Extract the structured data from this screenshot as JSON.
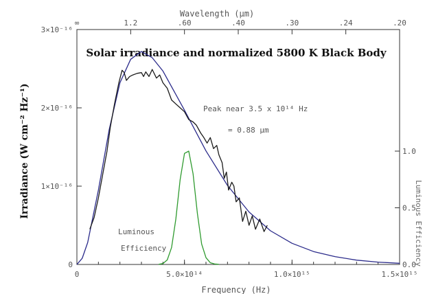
{
  "chart_data": {
    "type": "line",
    "title": "Solar irradiance and normalized 5800 K Black Body",
    "xlabel": "Frequency (Hz)",
    "ylabel": "Irradiance (W cm⁻² Hz⁻¹)",
    "x2label": "Wavelength (μm)",
    "y2label": "Luminous Efficiency",
    "xlim": [
      0,
      1500000000000000.0
    ],
    "ylim": [
      0,
      3e-16
    ],
    "y2lim": [
      0,
      1.5
    ],
    "x_ticks": [
      {
        "value": 0,
        "label": "0"
      },
      {
        "value": 500000000000000.0,
        "label": "5.0×10¹⁴"
      },
      {
        "value": 1000000000000000.0,
        "label": "1.0×10¹⁵"
      },
      {
        "value": 1500000000000000.0,
        "label": "1.5×10¹⁵"
      }
    ],
    "y_ticks": [
      {
        "value": 0,
        "label": "0"
      },
      {
        "value": 1e-16,
        "label": "1×10⁻¹⁶"
      },
      {
        "value": 2e-16,
        "label": "2×10⁻¹⁶"
      },
      {
        "value": 3e-16,
        "label": "3×10⁻¹⁶"
      }
    ],
    "y2_ticks": [
      {
        "value": 0,
        "label": "0.0"
      },
      {
        "value": 0.5,
        "label": "0.5"
      },
      {
        "value": 1.0,
        "label": "1.0"
      }
    ],
    "wavelength_ticks": [
      {
        "value": "∞",
        "frequency": 0
      },
      {
        "value": "1.2",
        "frequency": 250000000000000.0
      },
      {
        "value": ".60",
        "frequency": 500000000000000.0
      },
      {
        "value": ".40",
        "frequency": 750000000000000.0
      },
      {
        "value": ".30",
        "frequency": 1000000000000000.0
      },
      {
        "value": ".24",
        "frequency": 1250000000000000.0
      },
      {
        "value": ".20",
        "frequency": 1500000000000000.0
      }
    ],
    "annotations": {
      "peak_line1": "Peak near 3.5 x 10¹⁴ Hz",
      "peak_line2": "= 0.88 μm",
      "luminous_line1": "Luminous",
      "luminous_line2": "Efficiency"
    },
    "series": [
      {
        "name": "5800 K Black Body",
        "axis": "left",
        "color": "#2a2a8a",
        "x": [
          0,
          25000000000000.0,
          50000000000000.0,
          100000000000000.0,
          150000000000000.0,
          200000000000000.0,
          250000000000000.0,
          300000000000000.0,
          350000000000000.0,
          400000000000000.0,
          500000000000000.0,
          600000000000000.0,
          700000000000000.0,
          800000000000000.0,
          900000000000000.0,
          1000000000000000.0,
          1100000000000000.0,
          1200000000000000.0,
          1300000000000000.0,
          1400000000000000.0,
          1500000000000000.0
        ],
        "y": [
          0,
          8e-18,
          2.8e-17,
          9.5e-17,
          1.72e-16,
          2.32e-16,
          2.62e-16,
          2.72e-16,
          2.64e-16,
          2.47e-16,
          1.97e-16,
          1.45e-16,
          1.01e-16,
          6.7e-17,
          4.3e-17,
          2.7e-17,
          1.65e-17,
          1e-17,
          5.5e-18,
          3e-18,
          1.5e-18
        ]
      },
      {
        "name": "Solar irradiance",
        "axis": "left",
        "color": "#1a1a1a",
        "x": [
          60000000000000.0,
          80000000000000.0,
          100000000000000.0,
          120000000000000.0,
          140000000000000.0,
          155000000000000.0,
          175000000000000.0,
          195000000000000.0,
          210000000000000.0,
          220000000000000.0,
          230000000000000.0,
          245000000000000.0,
          260000000000000.0,
          280000000000000.0,
          300000000000000.0,
          310000000000000.0,
          320000000000000.0,
          335000000000000.0,
          350000000000000.0,
          370000000000000.0,
          385000000000000.0,
          400000000000000.0,
          420000000000000.0,
          440000000000000.0,
          460000000000000.0,
          480000000000000.0,
          500000000000000.0,
          520000000000000.0,
          540000000000000.0,
          555000000000000.0,
          575000000000000.0,
          590000000000000.0,
          605000000000000.0,
          620000000000000.0,
          635000000000000.0,
          650000000000000.0,
          660000000000000.0,
          675000000000000.0,
          685000000000000.0,
          695000000000000.0,
          705000000000000.0,
          720000000000000.0,
          730000000000000.0,
          740000000000000.0,
          755000000000000.0,
          770000000000000.0,
          785000000000000.0,
          800000000000000.0,
          815000000000000.0,
          830000000000000.0,
          850000000000000.0,
          870000000000000.0,
          885000000000000.0
        ],
        "y": [
          4.5e-17,
          6e-17,
          8.5e-17,
          1.15e-16,
          1.45e-16,
          1.75e-16,
          2.05e-16,
          2.32e-16,
          2.48e-16,
          2.45e-16,
          2.35e-16,
          2.4e-16,
          2.42e-16,
          2.44e-16,
          2.45e-16,
          2.4e-16,
          2.46e-16,
          2.4e-16,
          2.49e-16,
          2.38e-16,
          2.42e-16,
          2.32e-16,
          2.25e-16,
          2.1e-16,
          2.05e-16,
          2e-16,
          1.95e-16,
          1.85e-16,
          1.82e-16,
          1.78e-16,
          1.68e-16,
          1.62e-16,
          1.55e-16,
          1.62e-16,
          1.48e-16,
          1.52e-16,
          1.4e-16,
          1.3e-16,
          1.1e-16,
          1.18e-16,
          9.5e-17,
          1.05e-16,
          1e-16,
          8e-17,
          8.5e-17,
          5.5e-17,
          6.8e-17,
          5e-17,
          6.2e-17,
          4.5e-17,
          5.8e-17,
          4.2e-17,
          5e-17
        ]
      },
      {
        "name": "Luminous Efficiency",
        "axis": "right",
        "color": "#2e9a2e",
        "x": [
          380000000000000.0,
          400000000000000.0,
          420000000000000.0,
          440000000000000.0,
          460000000000000.0,
          480000000000000.0,
          500000000000000.0,
          520000000000000.0,
          540000000000000.0,
          560000000000000.0,
          580000000000000.0,
          600000000000000.0,
          620000000000000.0,
          640000000000000.0,
          660000000000000.0
        ],
        "y": [
          0.001,
          0.008,
          0.04,
          0.15,
          0.4,
          0.75,
          0.98,
          1.0,
          0.8,
          0.45,
          0.18,
          0.06,
          0.015,
          0.004,
          0.001
        ]
      }
    ],
    "grid": false,
    "legend": "none"
  }
}
